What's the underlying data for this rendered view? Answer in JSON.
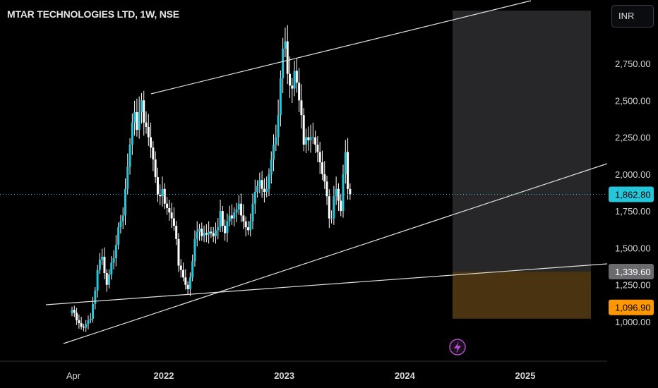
{
  "header": {
    "title": "MTAR TECHNOLOGIES LTD, 1W, NSE",
    "currency": "INR"
  },
  "colors": {
    "background": "#000000",
    "candle": "#26c6da",
    "candle_wick": "#ffffff",
    "trendline": "#e0e0e0",
    "current_price_line": "#26c6da",
    "zone_upper": "#2b2b2e",
    "zone_lower": "#4a3310",
    "tag_current": "#26c6da",
    "tag_level": "#6b6b6f",
    "tag_stop": "#ff9800",
    "lightning_icon": "#b14fc9"
  },
  "chart_data": {
    "type": "candlestick",
    "title": "MTAR TECHNOLOGIES LTD, 1W, NSE",
    "y_ticks": [
      "1,000.00",
      "1,250.00",
      "1,500.00",
      "1,750.00",
      "2,000.00",
      "2,250.00",
      "2,500.00",
      "2,750.00"
    ],
    "y_tick_values": [
      1000,
      1250,
      1500,
      1750,
      2000,
      2250,
      2500,
      2750
    ],
    "ylim": [
      920,
      3000
    ],
    "x_ticks": [
      "Apr",
      "2022",
      "2023",
      "2024",
      "2025"
    ],
    "x_tick_values": [
      2021.25,
      2022.0,
      2023.0,
      2024.0,
      2025.0
    ],
    "xlim": [
      2020.73,
      2025.84
    ],
    "price_tags": {
      "current": "1,862.80",
      "level": "1,339.60",
      "stop": "1,096.90"
    },
    "price_tag_values": {
      "current": 1862.8,
      "level": 1339.6,
      "stop": 1096.9
    },
    "close_series": [
      1080,
      1060,
      1010,
      990,
      965,
      960,
      985,
      1010,
      1020,
      1120,
      1210,
      1350,
      1420,
      1440,
      1330,
      1250,
      1320,
      1400,
      1430,
      1520,
      1640,
      1680,
      1720,
      1900,
      2050,
      2200,
      2350,
      2420,
      2300,
      2420,
      2500,
      2350,
      2320,
      2250,
      2180,
      2100,
      1980,
      1860,
      1850,
      1900,
      1800,
      1770,
      1740,
      1700,
      1650,
      1560,
      1380,
      1350,
      1300,
      1250,
      1220,
      1300,
      1410,
      1560,
      1610,
      1630,
      1580,
      1600,
      1590,
      1610,
      1600,
      1580,
      1620,
      1640,
      1750,
      1650,
      1600,
      1680,
      1720,
      1700,
      1740,
      1760,
      1800,
      1720,
      1680,
      1640,
      1620,
      1680,
      1800,
      1880,
      1920,
      1960,
      1900,
      1880,
      1900,
      2000,
      2100,
      2200,
      2250,
      2400,
      2650,
      2850,
      2900,
      2680,
      2600,
      2580,
      2700,
      2620,
      2500,
      2400,
      2200,
      2250,
      2230,
      2250,
      2250,
      2200,
      2150,
      2080,
      2000,
      1950,
      1850,
      1700,
      1700,
      1850,
      1900,
      1820,
      1750,
      2000,
      2150,
      1900,
      1862.8
    ]
  }
}
